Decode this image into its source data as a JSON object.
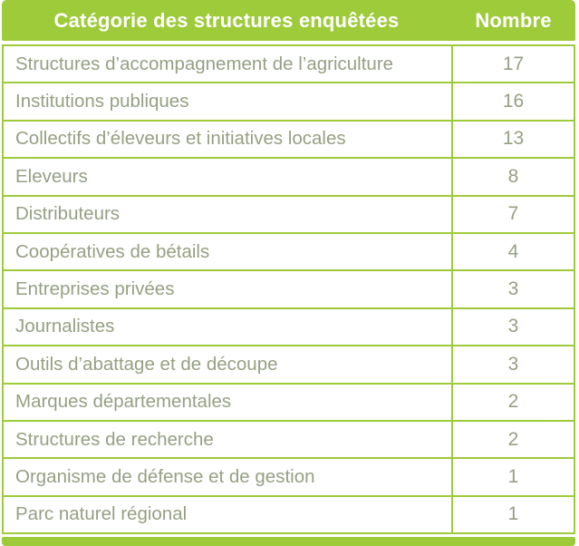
{
  "colors": {
    "accent_green": "#9ecb3a",
    "header_text": "#ffffff",
    "body_text": "#96a083"
  },
  "table": {
    "header": {
      "category": "Catégorie des structures enquêtées",
      "count": "Nombre"
    },
    "rows": [
      {
        "label": "Structures d’accompagnement de l’agriculture",
        "value": "17"
      },
      {
        "label": "Institutions publiques",
        "value": "16"
      },
      {
        "label": "Collectifs d’éleveurs et initiatives locales",
        "value": "13"
      },
      {
        "label": "Eleveurs",
        "value": "8"
      },
      {
        "label": "Distributeurs",
        "value": "7"
      },
      {
        "label": "Coopératives de bétails",
        "value": "4"
      },
      {
        "label": "Entreprises privées",
        "value": "3"
      },
      {
        "label": "Journalistes",
        "value": "3"
      },
      {
        "label": "Outils d’abattage et de découpe",
        "value": "3"
      },
      {
        "label": "Marques départementales",
        "value": "2"
      },
      {
        "label": "Structures de recherche",
        "value": "2"
      },
      {
        "label": "Organisme de défense et de gestion",
        "value": "1"
      },
      {
        "label": "Parc naturel régional",
        "value": "1"
      }
    ]
  },
  "chart_data": {
    "type": "table",
    "title": "Catégorie des structures enquêtées",
    "columns": [
      "Catégorie des structures enquêtées",
      "Nombre"
    ],
    "rows": [
      [
        "Structures d’accompagnement de l’agriculture",
        17
      ],
      [
        "Institutions publiques",
        16
      ],
      [
        "Collectifs d’éleveurs et initiatives locales",
        13
      ],
      [
        "Eleveurs",
        8
      ],
      [
        "Distributeurs",
        7
      ],
      [
        "Coopératives de bétails",
        4
      ],
      [
        "Entreprises privées",
        3
      ],
      [
        "Journalistes",
        3
      ],
      [
        "Outils d’abattage et de découpe",
        3
      ],
      [
        "Marques départementales",
        2
      ],
      [
        "Structures de recherche",
        2
      ],
      [
        "Organisme de défense et de gestion",
        1
      ],
      [
        "Parc naturel régional",
        1
      ]
    ]
  }
}
